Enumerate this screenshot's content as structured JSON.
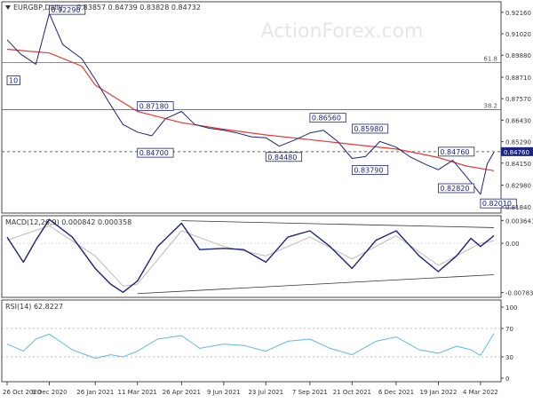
{
  "chart_data": [
    {
      "type": "line",
      "panel": "price",
      "header": {
        "symbol_timeframe": "EURGBP,Daily",
        "ohlc": "0.83857 0.84739 0.83828 0.84732"
      },
      "watermark": "ActionForex.com",
      "y_ticks": [
        "0.92160",
        "0.91020",
        "0.89880",
        "0.88710",
        "0.87570",
        "0.86430",
        "0.85290",
        "0.84150",
        "0.82980",
        "0.81840"
      ],
      "ylim": [
        0.815,
        0.9272
      ],
      "x_ticks": [
        "26 Oct 2020",
        "9 Dec 2020",
        "26 Jan 2021",
        "11 Mar 2021",
        "26 Apr 2021",
        "9 Jun 2021",
        "23 Jul 2021",
        "7 Sep 2021",
        "21 Oct 2021",
        "6 Dec 2021",
        "19 Jan 2022",
        "4 Mar 2022"
      ],
      "current_price": "0.84760",
      "fib_levels": [
        {
          "label": "61.8",
          "price": 0.8949
        },
        {
          "label": "38.2",
          "price": 0.8699
        }
      ],
      "horizontal_level": 0.8476,
      "annotations": [
        {
          "text": "0.92290",
          "x": "9 Dec 2020",
          "y": 0.9229
        },
        {
          "text": "0.87180",
          "x": "11 Mar 2021",
          "y": 0.8718
        },
        {
          "text": "0.84700",
          "x": "11 Mar 2021",
          "y": 0.847
        },
        {
          "text": "0.84480",
          "x": "23 Jul 2021",
          "y": 0.8448
        },
        {
          "text": "0.86560",
          "x": "7 Sep 2021",
          "y": 0.8656
        },
        {
          "text": "0.85980",
          "x": "21 Oct 2021",
          "y": 0.8598
        },
        {
          "text": "0.83790",
          "x": "21 Oct 2021",
          "y": 0.8379
        },
        {
          "text": "0.84760",
          "x": "19 Jan 2022",
          "y": 0.8476
        },
        {
          "text": "0.82820",
          "x": "19 Jan 2022",
          "y": 0.8282
        },
        {
          "text": "0.82010",
          "x": "4 Mar 2022",
          "y": 0.8201
        },
        {
          "text": "10",
          "x": "26 Oct 2020",
          "y": 0.8855
        }
      ],
      "series": [
        {
          "name": "price",
          "color": "#1a237e",
          "x": [
            "26 Oct 2020",
            "9 Nov 2020",
            "25 Nov 2020",
            "9 Dec 2020",
            "23 Dec 2020",
            "12 Jan 2021",
            "26 Jan 2021",
            "9 Feb 2021",
            "24 Feb 2021",
            "11 Mar 2021",
            "26 Mar 2021",
            "9 Apr 2021",
            "26 Apr 2021",
            "10 May 2021",
            "25 May 2021",
            "9 Jun 2021",
            "23 Jun 2021",
            "8 Jul 2021",
            "23 Jul 2021",
            "6 Aug 2021",
            "23 Aug 2021",
            "7 Sep 2021",
            "21 Sep 2021",
            "6 Oct 2021",
            "21 Oct 2021",
            "4 Nov 2021",
            "19 Nov 2021",
            "6 Dec 2021",
            "20 Dec 2021",
            "5 Jan 2022",
            "19 Jan 2022",
            "3 Feb 2022",
            "17 Feb 2022",
            "4 Mar 2022",
            "11 Mar 2022",
            "18 Mar 2022"
          ],
          "values": [
            0.907,
            0.8995,
            0.894,
            0.921,
            0.9045,
            0.897,
            0.886,
            0.874,
            0.862,
            0.858,
            0.856,
            0.865,
            0.869,
            0.862,
            0.86,
            0.859,
            0.8575,
            0.8555,
            0.855,
            0.8505,
            0.854,
            0.8575,
            0.859,
            0.853,
            0.844,
            0.845,
            0.853,
            0.85,
            0.845,
            0.841,
            0.838,
            0.843,
            0.8345,
            0.825,
            0.841,
            0.8473
          ]
        },
        {
          "name": "moving-average",
          "color": "#e53935",
          "x": [
            "26 Oct 2020",
            "9 Dec 2020",
            "12 Jan 2021",
            "26 Jan 2021",
            "11 Mar 2021",
            "26 Apr 2021",
            "9 Jun 2021",
            "23 Jul 2021",
            "7 Sep 2021",
            "21 Oct 2021",
            "6 Dec 2021",
            "19 Jan 2022",
            "17 Feb 2022",
            "18 Mar 2022"
          ],
          "values": [
            0.902,
            0.9,
            0.893,
            0.883,
            0.869,
            0.863,
            0.8595,
            0.8565,
            0.854,
            0.8515,
            0.849,
            0.8445,
            0.84,
            0.8375
          ]
        }
      ]
    },
    {
      "type": "line",
      "panel": "macd",
      "header": "MACD(12,26,9) 0.000842 0.000358",
      "y_ticks": [
        "0.003641",
        "0.00",
        "-0.007839"
      ],
      "ylim": [
        -0.0086,
        0.0044
      ],
      "series": [
        {
          "name": "macd",
          "color": "#1a237e",
          "x": [
            "26 Oct 2020",
            "12 Nov 2020",
            "25 Nov 2020",
            "9 Dec 2020",
            "2 Jan 2021",
            "26 Jan 2021",
            "11 Feb 2021",
            "24 Feb 2021",
            "11 Mar 2021",
            "1 Apr 2021",
            "26 Apr 2021",
            "15 May 2021",
            "9 Jun 2021",
            "30 Jun 2021",
            "23 Jul 2021",
            "15 Aug 2021",
            "7 Sep 2021",
            "28 Sep 2021",
            "21 Oct 2021",
            "15 Nov 2021",
            "6 Dec 2021",
            "30 Dec 2021",
            "19 Jan 2022",
            "7 Feb 2022",
            "22 Feb 2022",
            "4 Mar 2022",
            "18 Mar 2022"
          ],
          "values": [
            0.001,
            -0.003,
            0.0005,
            0.0038,
            0.001,
            -0.004,
            -0.0065,
            -0.0078,
            -0.006,
            -0.0005,
            0.0032,
            -0.001,
            -0.0008,
            -0.001,
            -0.003,
            0.001,
            0.002,
            -0.0005,
            -0.004,
            0.0005,
            0.002,
            -0.002,
            -0.0045,
            -0.002,
            0.0008,
            -0.0005,
            0.0012
          ]
        },
        {
          "name": "signal",
          "color": "#bbbbbb",
          "x": [
            "26 Oct 2020",
            "9 Dec 2020",
            "26 Jan 2021",
            "24 Feb 2021",
            "11 Mar 2021",
            "26 Apr 2021",
            "9 Jun 2021",
            "23 Jul 2021",
            "7 Sep 2021",
            "21 Oct 2021",
            "6 Dec 2021",
            "19 Jan 2022",
            "4 Mar 2022",
            "18 Mar 2022"
          ],
          "values": [
            0.0005,
            0.0028,
            -0.002,
            -0.0068,
            -0.0065,
            0.002,
            -0.0005,
            -0.002,
            0.001,
            -0.0025,
            0.0012,
            -0.0035,
            0.0,
            0.0004
          ]
        }
      ],
      "trend_lines": [
        {
          "from": {
            "x": "26 Apr 2021",
            "y": 0.0036
          },
          "to": {
            "x": "18 Mar 2022",
            "y": 0.0025
          }
        },
        {
          "from": {
            "x": "11 Mar 2021",
            "y": -0.008
          },
          "to": {
            "x": "18 Mar 2022",
            "y": -0.005
          }
        }
      ]
    },
    {
      "type": "line",
      "panel": "rsi",
      "header": "RSI(14) 62.8227",
      "y_ticks": [
        "100",
        "70",
        "30",
        "0"
      ],
      "ylim": [
        0,
        100
      ],
      "reference_levels": [
        70,
        30
      ],
      "series": [
        {
          "name": "rsi",
          "color": "#5db8e8",
          "x": [
            "26 Oct 2020",
            "12 Nov 2020",
            "25 Nov 2020",
            "9 Dec 2020",
            "2 Jan 2021",
            "26 Jan 2021",
            "11 Feb 2021",
            "24 Feb 2021",
            "11 Mar 2021",
            "1 Apr 2021",
            "26 Apr 2021",
            "15 May 2021",
            "9 Jun 2021",
            "30 Jun 2021",
            "23 Jul 2021",
            "15 Aug 2021",
            "7 Sep 2021",
            "28 Sep 2021",
            "21 Oct 2021",
            "15 Nov 2021",
            "6 Dec 2021",
            "30 Dec 2021",
            "19 Jan 2022",
            "7 Feb 2022",
            "22 Feb 2022",
            "4 Mar 2022",
            "18 Mar 2022"
          ],
          "values": [
            48,
            38,
            55,
            62,
            40,
            28,
            33,
            30,
            38,
            55,
            60,
            42,
            48,
            46,
            38,
            52,
            55,
            42,
            33,
            52,
            58,
            40,
            35,
            45,
            40,
            32,
            63
          ]
        }
      ]
    }
  ]
}
